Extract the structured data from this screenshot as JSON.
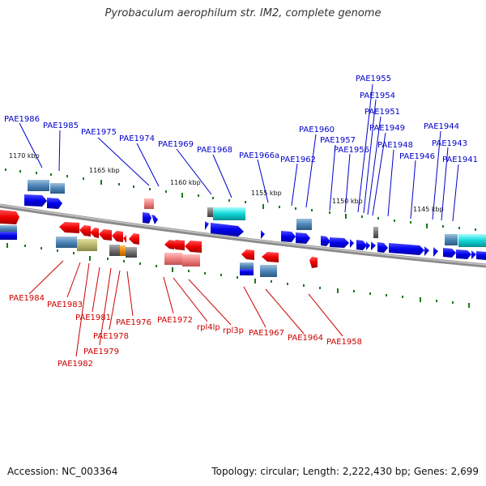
{
  "title": "Pyrobaculum aerophilum str. IM2, complete genome",
  "footer": {
    "accession": "Accession: NC_003364",
    "summary": "Topology: circular; Length: 2,222,430 bp; Genes: 2,699"
  },
  "colors": {
    "forward_strand_label": "#0000cc",
    "reverse_strand_label": "#cc0000",
    "backbone": "#888888",
    "tick": "#1a7a1a"
  },
  "kbp_ticks": [
    "1170 kbp",
    "1165 kbp",
    "1160 kbp",
    "1155 kbp",
    "1150 kbp",
    "1145 kbp"
  ],
  "forward_genes": [
    "PAE1986",
    "PAE1985",
    "PAE1975",
    "PAE1974",
    "PAE1969",
    "PAE1968",
    "PAE1966a",
    "PAE1962",
    "PAE1960",
    "PAE1957",
    "PAE1956",
    "PAE1955",
    "PAE1954",
    "PAE1951",
    "PAE1949",
    "PAE1948",
    "PAE1946",
    "PAE1944",
    "PAE1943",
    "PAE1941"
  ],
  "reverse_genes": [
    "PAE1984",
    "PAE1983",
    "PAE1982",
    "PAE1981",
    "PAE1979",
    "PAE1978",
    "PAE1976",
    "PAE1972",
    "rpl4lp",
    "rpl3p",
    "PAE1967",
    "PAE1964",
    "PAE1958"
  ]
}
